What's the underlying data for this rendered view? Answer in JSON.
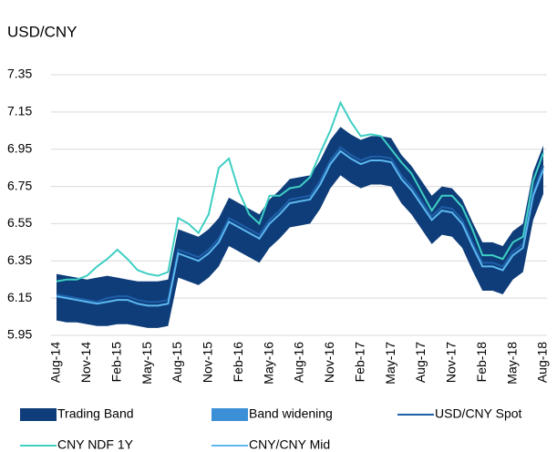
{
  "chart_data": {
    "type": "line",
    "title": "USD/CNY",
    "categories": [
      "Aug-14",
      null,
      null,
      "Nov-14",
      null,
      null,
      "Feb-15",
      null,
      null,
      "May-15",
      null,
      null,
      "Aug-15",
      null,
      null,
      "Nov-15",
      null,
      null,
      "Feb-16",
      null,
      null,
      "May-16",
      null,
      null,
      "Aug-16",
      null,
      null,
      "Nov-16",
      null,
      null,
      "Feb-17",
      null,
      null,
      "May-17",
      null,
      null,
      "Aug-17",
      null,
      null,
      "Nov-17",
      null,
      null,
      "Feb-18",
      null,
      null,
      "May-18",
      null,
      null,
      "Aug-18"
    ],
    "ylim": [
      5.95,
      7.45
    ],
    "yticks": [
      5.95,
      6.15,
      6.35,
      6.55,
      6.75,
      6.95,
      7.15,
      7.35
    ],
    "grid": true,
    "series": [
      {
        "name": "Trading Band",
        "kind": "band",
        "color": "#0e3d7a",
        "lower": [
          6.03,
          6.02,
          6.02,
          6.01,
          6.0,
          6.0,
          6.01,
          6.01,
          6.0,
          5.99,
          5.99,
          6.0,
          6.26,
          6.24,
          6.22,
          6.26,
          6.32,
          6.43,
          6.4,
          6.37,
          6.34,
          6.42,
          6.47,
          6.53,
          6.54,
          6.55,
          6.63,
          6.74,
          6.81,
          6.77,
          6.74,
          6.76,
          6.76,
          6.75,
          6.66,
          6.6,
          6.52,
          6.44,
          6.49,
          6.48,
          6.42,
          6.3,
          6.19,
          6.19,
          6.17,
          6.25,
          6.29,
          6.57,
          6.71
        ],
        "upper": [
          6.28,
          6.27,
          6.26,
          6.25,
          6.26,
          6.27,
          6.26,
          6.25,
          6.24,
          6.24,
          6.24,
          6.25,
          6.52,
          6.5,
          6.48,
          6.52,
          6.58,
          6.69,
          6.66,
          6.63,
          6.6,
          6.68,
          6.73,
          6.79,
          6.8,
          6.81,
          6.89,
          7.0,
          7.07,
          7.03,
          7.0,
          7.02,
          7.02,
          7.01,
          6.92,
          6.86,
          6.78,
          6.7,
          6.75,
          6.74,
          6.68,
          6.56,
          6.45,
          6.45,
          6.43,
          6.51,
          6.55,
          6.83,
          6.97
        ]
      },
      {
        "name": "Band widening",
        "kind": "band",
        "color": "#3a8fd6",
        "lower": [
          null,
          null,
          null,
          null,
          null,
          null,
          null,
          null,
          null,
          null,
          null,
          null,
          null,
          null,
          null,
          null,
          null,
          null,
          null,
          null,
          null,
          null,
          null,
          null,
          null,
          null,
          null,
          null,
          null,
          null,
          null,
          null,
          null,
          null,
          null,
          null,
          null,
          null,
          null,
          null,
          null,
          null,
          null,
          null,
          null,
          null,
          null,
          null,
          null
        ],
        "upper": [
          null,
          null,
          null,
          null,
          null,
          null,
          null,
          null,
          null,
          null,
          null,
          null,
          null,
          null,
          null,
          null,
          null,
          null,
          null,
          null,
          null,
          null,
          null,
          null,
          null,
          null,
          null,
          null,
          null,
          null,
          null,
          null,
          null,
          null,
          null,
          null,
          null,
          null,
          null,
          null,
          null,
          null,
          null,
          null,
          null,
          null,
          null,
          null,
          null
        ]
      },
      {
        "name": "USD/CNY Spot",
        "kind": "line",
        "color": "#1f5fa8",
        "values": [
          6.17,
          6.16,
          6.15,
          6.14,
          6.13,
          6.15,
          6.16,
          6.16,
          6.14,
          6.13,
          6.13,
          6.14,
          6.41,
          6.39,
          6.37,
          6.41,
          6.47,
          6.58,
          6.55,
          6.52,
          6.49,
          6.57,
          6.62,
          6.68,
          6.69,
          6.7,
          6.78,
          6.89,
          6.96,
          6.92,
          6.89,
          6.91,
          6.91,
          6.9,
          6.81,
          6.75,
          6.67,
          6.59,
          6.64,
          6.63,
          6.57,
          6.45,
          6.34,
          6.34,
          6.32,
          6.4,
          6.44,
          6.72,
          6.86
        ]
      },
      {
        "name": "CNY NDF 1Y",
        "kind": "line",
        "color": "#3fcfc4",
        "values": [
          6.24,
          6.25,
          6.25,
          6.27,
          6.32,
          6.36,
          6.41,
          6.36,
          6.3,
          6.28,
          6.27,
          6.29,
          6.58,
          6.55,
          6.5,
          6.6,
          6.85,
          6.9,
          6.72,
          6.6,
          6.55,
          6.7,
          6.7,
          6.74,
          6.75,
          6.8,
          6.93,
          7.05,
          7.2,
          7.1,
          7.02,
          7.03,
          7.02,
          6.95,
          6.88,
          6.82,
          6.72,
          6.62,
          6.7,
          6.7,
          6.64,
          6.52,
          6.38,
          6.38,
          6.36,
          6.45,
          6.48,
          6.78,
          6.93
        ]
      },
      {
        "name": "CNY/CNY Mid",
        "kind": "line",
        "color": "#5cb8f0",
        "values": [
          6.16,
          6.15,
          6.14,
          6.13,
          6.12,
          6.13,
          6.14,
          6.14,
          6.12,
          6.11,
          6.11,
          6.12,
          6.39,
          6.37,
          6.35,
          6.39,
          6.45,
          6.56,
          6.53,
          6.5,
          6.47,
          6.55,
          6.6,
          6.66,
          6.67,
          6.68,
          6.76,
          6.87,
          6.94,
          6.9,
          6.87,
          6.89,
          6.89,
          6.88,
          6.79,
          6.73,
          6.65,
          6.57,
          6.62,
          6.61,
          6.55,
          6.43,
          6.32,
          6.32,
          6.3,
          6.38,
          6.42,
          6.7,
          6.84
        ]
      }
    ]
  }
}
